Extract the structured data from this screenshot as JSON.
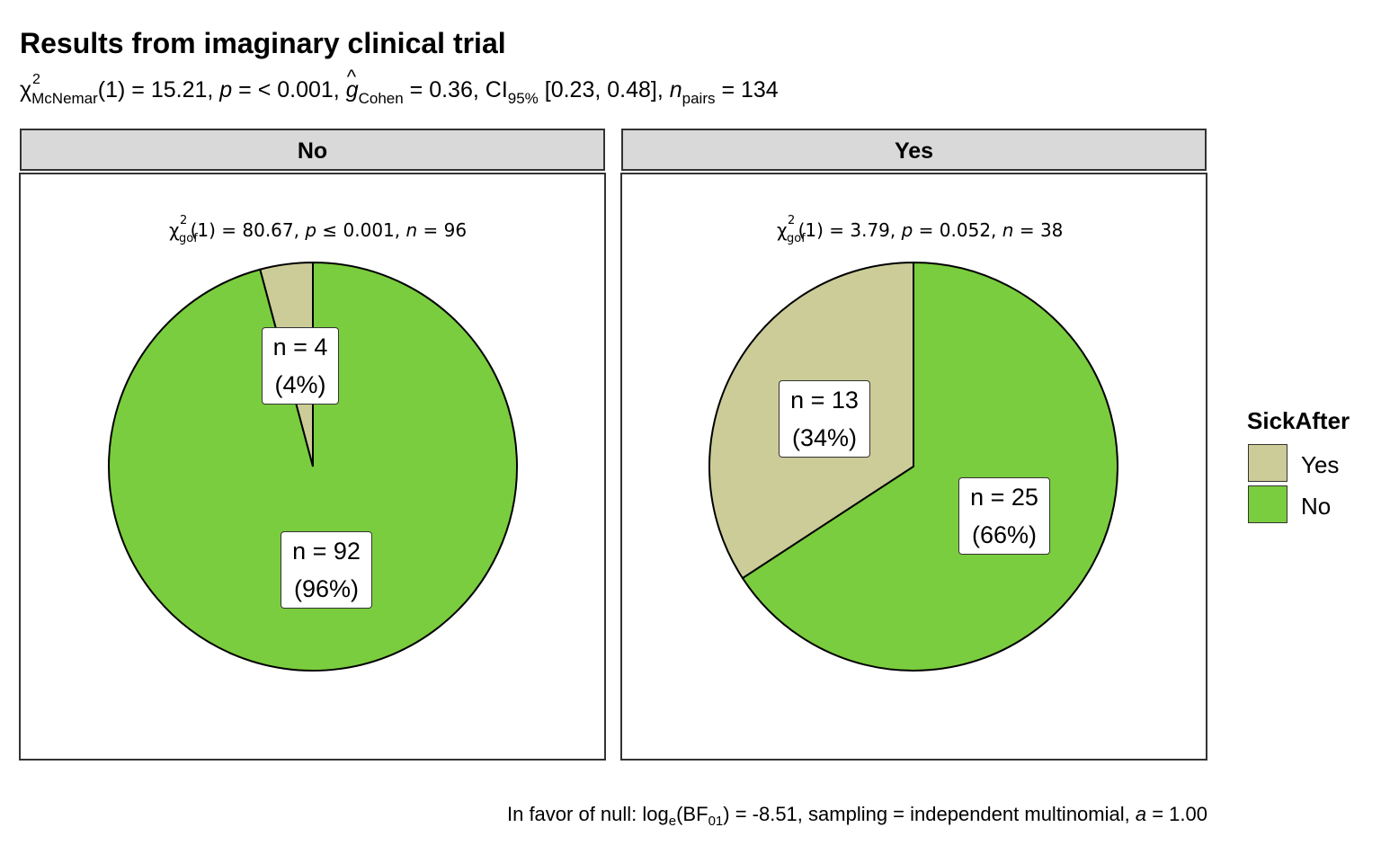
{
  "title": "Results from imaginary clinical trial",
  "subtitle": {
    "chi_symbol": "χ",
    "chi_sup": "2",
    "chi_sub": "McNemar",
    "df_text": "(1) = 15.21, ",
    "p_symbol": "p",
    "p_text": " = < 0.001, ",
    "g_symbol": "g",
    "g_hat": "^",
    "g_sub": "Cohen",
    "g_text": " = 0.36, CI",
    "ci_sub": "95%",
    "ci_text": " [0.23, 0.48], ",
    "n_symbol": "n",
    "n_sub": "pairs",
    "n_text": " = 134"
  },
  "caption": {
    "prefix": "In favor of null: log",
    "log_sub": "e",
    "bf_open": "(BF",
    "bf_sub": "01",
    "rest": ") = -8.51, sampling = independent multinomial, ",
    "a_symbol": "a",
    "a_text": " = 1.00"
  },
  "legend": {
    "title": "SickAfter",
    "items": [
      {
        "label": "Yes",
        "color": "#cccc99"
      },
      {
        "label": "No",
        "color": "#7acd3e"
      }
    ]
  },
  "colors": {
    "Yes": "#cccc99",
    "No": "#7acd3e",
    "outline": "#000000",
    "strip_bg": "#d9d9d9"
  },
  "facets": [
    {
      "strip": "No",
      "stat": {
        "chi": "χ",
        "sup": "2",
        "sub": "gof",
        "df": "(1) = 80.67, ",
        "p": "p",
        "p_text": " ≤ 0.001, ",
        "n": "n",
        "n_text": " = 96"
      },
      "labels": [
        {
          "n": "n = 4",
          "pct": "(4%)"
        },
        {
          "n": "n = 92",
          "pct": "(96%)"
        }
      ]
    },
    {
      "strip": "Yes",
      "stat": {
        "chi": "χ",
        "sup": "2",
        "sub": "gof",
        "df": "(1) = 3.79, ",
        "p": "p",
        "p_text": " = 0.052, ",
        "n": "n",
        "n_text": " = 38"
      },
      "labels": [
        {
          "n": "n = 13",
          "pct": "(34%)"
        },
        {
          "n": "n = 25",
          "pct": "(66%)"
        }
      ]
    }
  ],
  "chart_data": [
    {
      "type": "pie",
      "facet": "No",
      "categories": [
        "Yes",
        "No"
      ],
      "values": [
        4,
        92
      ],
      "percents": [
        4,
        96
      ]
    },
    {
      "type": "pie",
      "facet": "Yes",
      "categories": [
        "Yes",
        "No"
      ],
      "values": [
        13,
        25
      ],
      "percents": [
        34,
        66
      ]
    }
  ]
}
